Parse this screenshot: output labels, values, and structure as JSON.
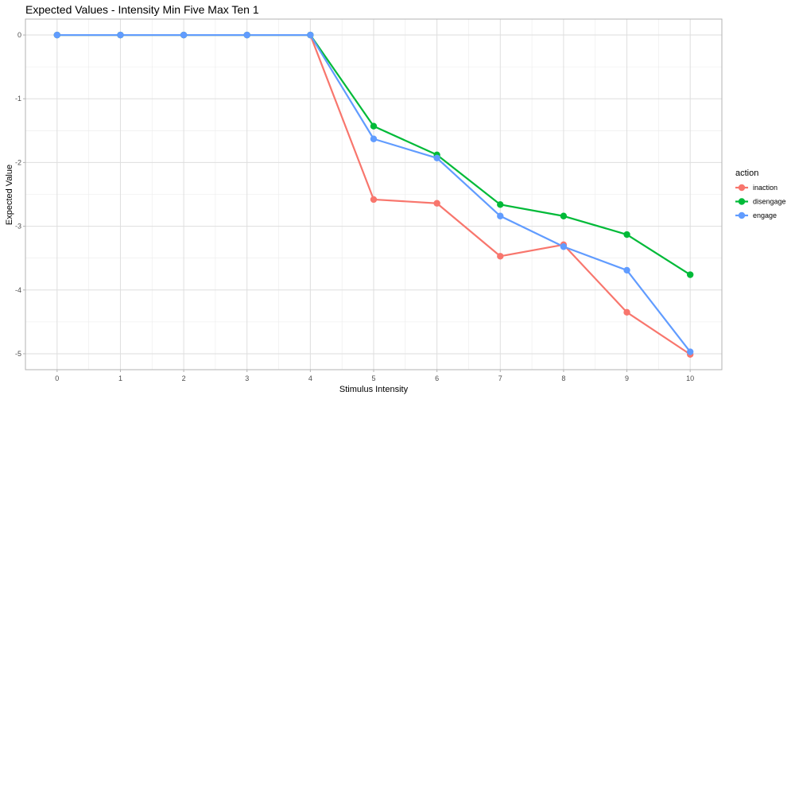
{
  "chart_data": {
    "type": "line",
    "title": "Expected Values - Intensity Min Five Max Ten 1",
    "xlabel": "Stimulus Intensity",
    "ylabel": "Expected Value",
    "x": [
      0,
      1,
      2,
      3,
      4,
      5,
      6,
      7,
      8,
      9,
      10
    ],
    "xlim": [
      -0.5,
      10.5
    ],
    "ylim": [
      -5.25,
      0.25
    ],
    "y_ticks": [
      0,
      -1,
      -2,
      -3,
      -4,
      -5
    ],
    "y_tick_labels": [
      "0",
      "-1",
      "-2",
      "-3",
      "-4",
      "-5"
    ],
    "x_tick_labels": [
      "0",
      "1",
      "2",
      "3",
      "4",
      "5",
      "6",
      "7",
      "8",
      "9",
      "10"
    ],
    "grid": true,
    "legend": {
      "title": "action",
      "placement": "right"
    },
    "series": [
      {
        "name": "inaction",
        "color": "#F8766D",
        "values": [
          0,
          0,
          0,
          0,
          0,
          -2.58,
          -2.64,
          -3.47,
          -3.29,
          -4.35,
          -5.01
        ]
      },
      {
        "name": "disengage",
        "color": "#00BA38",
        "values": [
          0,
          0,
          0,
          0,
          0,
          -1.43,
          -1.88,
          -2.66,
          -2.84,
          -3.13,
          -3.76
        ]
      },
      {
        "name": "engage",
        "color": "#619CFF",
        "values": [
          0,
          0,
          0,
          0,
          0,
          -1.63,
          -1.93,
          -2.84,
          -3.32,
          -3.69,
          -4.97
        ]
      }
    ]
  }
}
